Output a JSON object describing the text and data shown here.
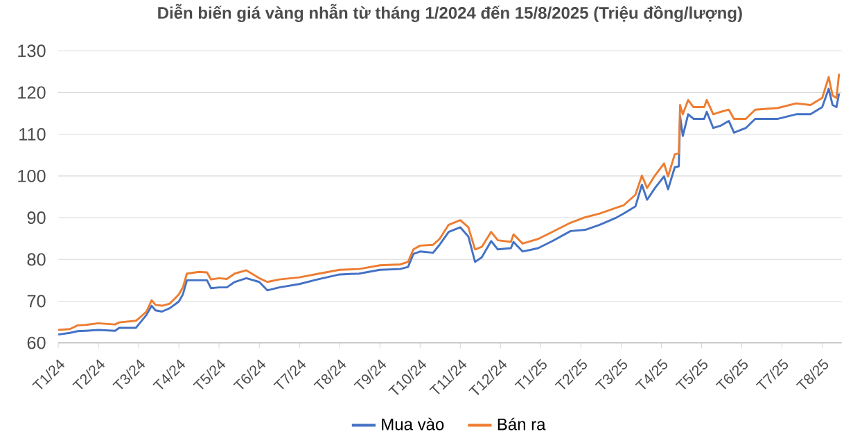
{
  "chart_data": {
    "type": "line",
    "title": "Diễn biến giá vàng nhẫn từ tháng 1/2024 đến 15/8/2025 (Triệu đồng/lượng)",
    "x": [
      "2024-01-01",
      "2024-01-10",
      "2024-01-16",
      "2024-01-22",
      "2024-02-01",
      "2024-02-13",
      "2024-02-16",
      "2024-02-28",
      "2024-03-01",
      "2024-03-07",
      "2024-03-11",
      "2024-03-14",
      "2024-03-19",
      "2024-03-25",
      "2024-04-01",
      "2024-04-04",
      "2024-04-07",
      "2024-04-16",
      "2024-04-22",
      "2024-04-25",
      "2024-05-01",
      "2024-05-07",
      "2024-05-13",
      "2024-05-22",
      "2024-06-01",
      "2024-06-07",
      "2024-06-16",
      "2024-07-01",
      "2024-07-16",
      "2024-08-01",
      "2024-08-16",
      "2024-09-01",
      "2024-09-16",
      "2024-09-22",
      "2024-09-26",
      "2024-10-01",
      "2024-10-11",
      "2024-10-16",
      "2024-10-23",
      "2024-11-01",
      "2024-11-07",
      "2024-11-12",
      "2024-11-17",
      "2024-11-24",
      "2024-11-29",
      "2024-12-09",
      "2024-12-11",
      "2024-12-18",
      "2024-12-30",
      "2025-01-10",
      "2025-01-24",
      "2025-02-04",
      "2025-02-14",
      "2025-02-25",
      "2025-03-03",
      "2025-03-12",
      "2025-03-17",
      "2025-03-21",
      "2025-03-27",
      "2025-04-03",
      "2025-04-06",
      "2025-04-11",
      "2025-04-14",
      "2025-04-15",
      "2025-04-17",
      "2025-04-21",
      "2025-04-25",
      "2025-05-03",
      "2025-05-05",
      "2025-05-10",
      "2025-05-16",
      "2025-05-22",
      "2025-05-26",
      "2025-06-04",
      "2025-06-11",
      "2025-06-28",
      "2025-07-12",
      "2025-07-23",
      "2025-08-01",
      "2025-08-06",
      "2025-08-09",
      "2025-08-12",
      "2025-08-14"
    ],
    "series": [
      {
        "name": "Mua vào",
        "color": "#4472c4",
        "values": [
          62.0,
          62.4,
          62.8,
          62.9,
          63.1,
          62.9,
          63.6,
          63.6,
          64.4,
          66.7,
          68.9,
          67.8,
          67.5,
          68.3,
          69.9,
          71.6,
          75.0,
          75.0,
          75.0,
          73.1,
          73.3,
          73.3,
          74.6,
          75.5,
          74.6,
          72.6,
          73.3,
          74.1,
          75.3,
          76.4,
          76.6,
          77.5,
          77.7,
          78.2,
          81.3,
          81.9,
          81.6,
          83.5,
          86.6,
          87.7,
          85.5,
          79.4,
          80.5,
          84.4,
          82.4,
          82.7,
          84.2,
          81.9,
          82.7,
          84.4,
          86.8,
          87.1,
          88.3,
          89.9,
          91.0,
          92.7,
          97.9,
          94.3,
          97.1,
          99.9,
          96.8,
          102.1,
          102.3,
          114.3,
          109.6,
          114.8,
          113.7,
          113.7,
          115.4,
          111.5,
          112.1,
          113.2,
          110.4,
          111.5,
          113.7,
          113.7,
          114.8,
          114.8,
          116.5,
          120.9,
          117.0,
          116.5,
          119.8
        ]
      },
      {
        "name": "Bán ra",
        "color": "#ed7d31",
        "values": [
          63.1,
          63.3,
          64.2,
          64.3,
          64.7,
          64.4,
          64.9,
          65.3,
          65.8,
          67.5,
          70.2,
          69.1,
          68.9,
          69.4,
          71.6,
          73.3,
          76.6,
          77.0,
          76.9,
          75.2,
          75.5,
          75.3,
          76.6,
          77.4,
          75.5,
          74.6,
          75.2,
          75.7,
          76.6,
          77.5,
          77.7,
          78.6,
          78.8,
          79.4,
          82.4,
          83.3,
          83.5,
          84.9,
          88.3,
          89.4,
          87.7,
          82.4,
          83.0,
          86.6,
          84.6,
          84.2,
          86.0,
          83.8,
          84.9,
          86.6,
          88.8,
          90.1,
          91.0,
          92.3,
          93.0,
          95.5,
          100.1,
          97.1,
          100.1,
          103.0,
          99.9,
          105.2,
          105.4,
          117.0,
          114.8,
          118.2,
          116.5,
          116.5,
          118.2,
          114.8,
          115.4,
          115.9,
          113.7,
          113.7,
          115.9,
          116.3,
          117.4,
          117.0,
          118.7,
          123.7,
          119.3,
          118.7,
          124.5
        ]
      }
    ],
    "xlim": [
      "2024-01-01",
      "2025-08-16"
    ],
    "xticks": [
      {
        "value": "2024-01",
        "label": "T1/24"
      },
      {
        "value": "2024-02",
        "label": "T2/24"
      },
      {
        "value": "2024-03",
        "label": "T3/24"
      },
      {
        "value": "2024-04",
        "label": "T4/24"
      },
      {
        "value": "2024-05",
        "label": "T5/24"
      },
      {
        "value": "2024-06",
        "label": "T6/24"
      },
      {
        "value": "2024-07",
        "label": "T7/24"
      },
      {
        "value": "2024-08",
        "label": "T8/24"
      },
      {
        "value": "2024-09",
        "label": "T9/24"
      },
      {
        "value": "2024-10",
        "label": "T10/24"
      },
      {
        "value": "2024-11",
        "label": "T11/24"
      },
      {
        "value": "2024-12",
        "label": "T12/24"
      },
      {
        "value": "2025-01",
        "label": "T1/25"
      },
      {
        "value": "2025-02",
        "label": "T2/25"
      },
      {
        "value": "2025-03",
        "label": "T3/25"
      },
      {
        "value": "2025-04",
        "label": "T4/25"
      },
      {
        "value": "2025-05",
        "label": "T5/25"
      },
      {
        "value": "2025-06",
        "label": "T6/25"
      },
      {
        "value": "2025-07",
        "label": "T7/25"
      },
      {
        "value": "2025-08",
        "label": "T8/25"
      }
    ],
    "ylim": [
      60,
      130
    ],
    "yticks": [
      60,
      70,
      80,
      90,
      100,
      110,
      120,
      130
    ],
    "grid": "y",
    "legend": "bottom",
    "marker": "none",
    "line_style": "solid"
  }
}
